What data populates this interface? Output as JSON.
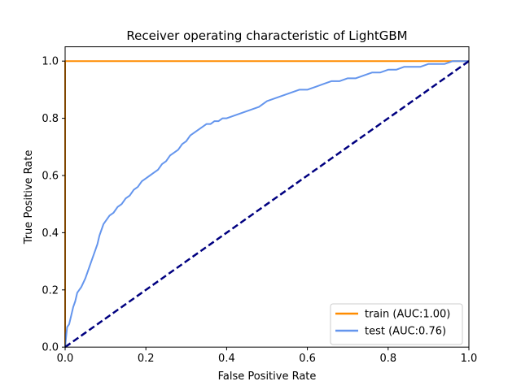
{
  "chart_data": {
    "type": "line",
    "title": "Receiver operating characteristic of LightGBM",
    "xlabel": "False Positive Rate",
    "ylabel": "True Positive Rate",
    "xlim": [
      0,
      1
    ],
    "ylim": [
      0,
      1.05
    ],
    "xticks": [
      "0.0",
      "0.2",
      "0.4",
      "0.6",
      "0.8",
      "1.0"
    ],
    "yticks": [
      "0.0",
      "0.2",
      "0.4",
      "0.6",
      "0.8",
      "1.0"
    ],
    "xtick_values": [
      0,
      0.2,
      0.4,
      0.6,
      0.8,
      1.0
    ],
    "ytick_values": [
      0,
      0.2,
      0.4,
      0.6,
      0.8,
      1.0
    ],
    "grid": false,
    "legend_position": "bottom-right",
    "series": [
      {
        "name": "train (AUC:1.00)",
        "color": "#ff8c00",
        "style": "solid",
        "x": [
          0,
          0,
          1.0
        ],
        "y": [
          0,
          1.0,
          1.0
        ]
      },
      {
        "name": "test (AUC:0.76)",
        "color": "#6495ed",
        "style": "solid",
        "x": [
          0,
          0.002,
          0.005,
          0.01,
          0.015,
          0.02,
          0.025,
          0.03,
          0.035,
          0.04,
          0.05,
          0.055,
          0.06,
          0.065,
          0.07,
          0.075,
          0.08,
          0.085,
          0.09,
          0.095,
          0.1,
          0.11,
          0.12,
          0.13,
          0.14,
          0.15,
          0.16,
          0.17,
          0.18,
          0.19,
          0.2,
          0.21,
          0.22,
          0.23,
          0.24,
          0.25,
          0.26,
          0.27,
          0.28,
          0.29,
          0.3,
          0.31,
          0.32,
          0.33,
          0.34,
          0.35,
          0.36,
          0.37,
          0.38,
          0.39,
          0.4,
          0.42,
          0.44,
          0.46,
          0.48,
          0.5,
          0.52,
          0.54,
          0.56,
          0.58,
          0.6,
          0.62,
          0.64,
          0.66,
          0.68,
          0.7,
          0.72,
          0.74,
          0.76,
          0.78,
          0.8,
          0.82,
          0.84,
          0.86,
          0.88,
          0.9,
          0.92,
          0.94,
          0.96,
          0.98,
          1.0
        ],
        "y": [
          0,
          0.03,
          0.07,
          0.08,
          0.11,
          0.14,
          0.16,
          0.19,
          0.2,
          0.21,
          0.24,
          0.26,
          0.28,
          0.3,
          0.32,
          0.34,
          0.36,
          0.39,
          0.41,
          0.43,
          0.44,
          0.46,
          0.47,
          0.49,
          0.5,
          0.52,
          0.53,
          0.55,
          0.56,
          0.58,
          0.59,
          0.6,
          0.61,
          0.62,
          0.64,
          0.65,
          0.67,
          0.68,
          0.69,
          0.71,
          0.72,
          0.74,
          0.75,
          0.76,
          0.77,
          0.78,
          0.78,
          0.79,
          0.79,
          0.8,
          0.8,
          0.81,
          0.82,
          0.83,
          0.84,
          0.86,
          0.87,
          0.88,
          0.89,
          0.9,
          0.9,
          0.91,
          0.92,
          0.93,
          0.93,
          0.94,
          0.94,
          0.95,
          0.96,
          0.96,
          0.97,
          0.97,
          0.98,
          0.98,
          0.98,
          0.99,
          0.99,
          0.99,
          1.0,
          1.0,
          1.0
        ]
      },
      {
        "color": "#000080",
        "style": "dashed",
        "x": [
          0,
          1
        ],
        "y": [
          0,
          1
        ]
      }
    ]
  }
}
